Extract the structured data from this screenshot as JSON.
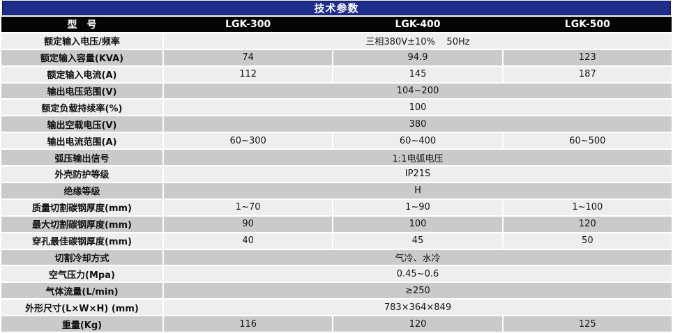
{
  "table": {
    "title": "技术参数",
    "header": {
      "model_label": "型　号",
      "models": [
        "LGK-300",
        "LGK-400",
        "LGK-500"
      ]
    },
    "rows": [
      {
        "label": "额定输入电压/频率",
        "merged": "三相380V±10%    50Hz"
      },
      {
        "label": "额定输入容量(KVA)",
        "values": [
          "74",
          "94.9",
          "123"
        ]
      },
      {
        "label": "额定输入电流(A)",
        "values": [
          "112",
          "145",
          "187"
        ]
      },
      {
        "label": "输出电压范围(V)",
        "merged": "104~200"
      },
      {
        "label": "额定负载持续率(%)",
        "merged": "100"
      },
      {
        "label": "输出空载电压(V)",
        "merged": "380"
      },
      {
        "label": "输出电流范围(A)",
        "values": [
          "60~300",
          "60~400",
          "60~500"
        ]
      },
      {
        "label": "弧压输出信号",
        "merged": "1:1电弧电压"
      },
      {
        "label": "外壳防护等级",
        "merged": "IP21S"
      },
      {
        "label": "绝缘等级",
        "merged": "H"
      },
      {
        "label": "质量切割碳钢厚度(mm)",
        "values": [
          "1~70",
          "1~90",
          "1~100"
        ]
      },
      {
        "label": "最大切割碳钢厚度(mm)",
        "values": [
          "90",
          "100",
          "120"
        ]
      },
      {
        "label": "穿孔最佳碳钢厚度(mm)",
        "values": [
          "40",
          "45",
          "50"
        ]
      },
      {
        "label": "切割冷却方式",
        "merged": "气冷、水冷"
      },
      {
        "label": "空气压力(Mpa)",
        "merged": "0.45~0.6"
      },
      {
        "label": "气体流量(L/min)",
        "merged": "≥250"
      },
      {
        "label": "外形尺寸(L×W×H) (mm)",
        "merged": "783×364×849"
      },
      {
        "label": "重量(Kg)",
        "values": [
          "116",
          "120",
          "125"
        ]
      }
    ],
    "colors": {
      "title_bg": "#1f2e8b",
      "title_border": "#0e1650",
      "header_bg": "#050505",
      "row_light": "#eeeeee",
      "row_dark": "#cacaca",
      "separator": "#ffffff",
      "text": "#111111",
      "header_text": "#ffffff"
    }
  }
}
